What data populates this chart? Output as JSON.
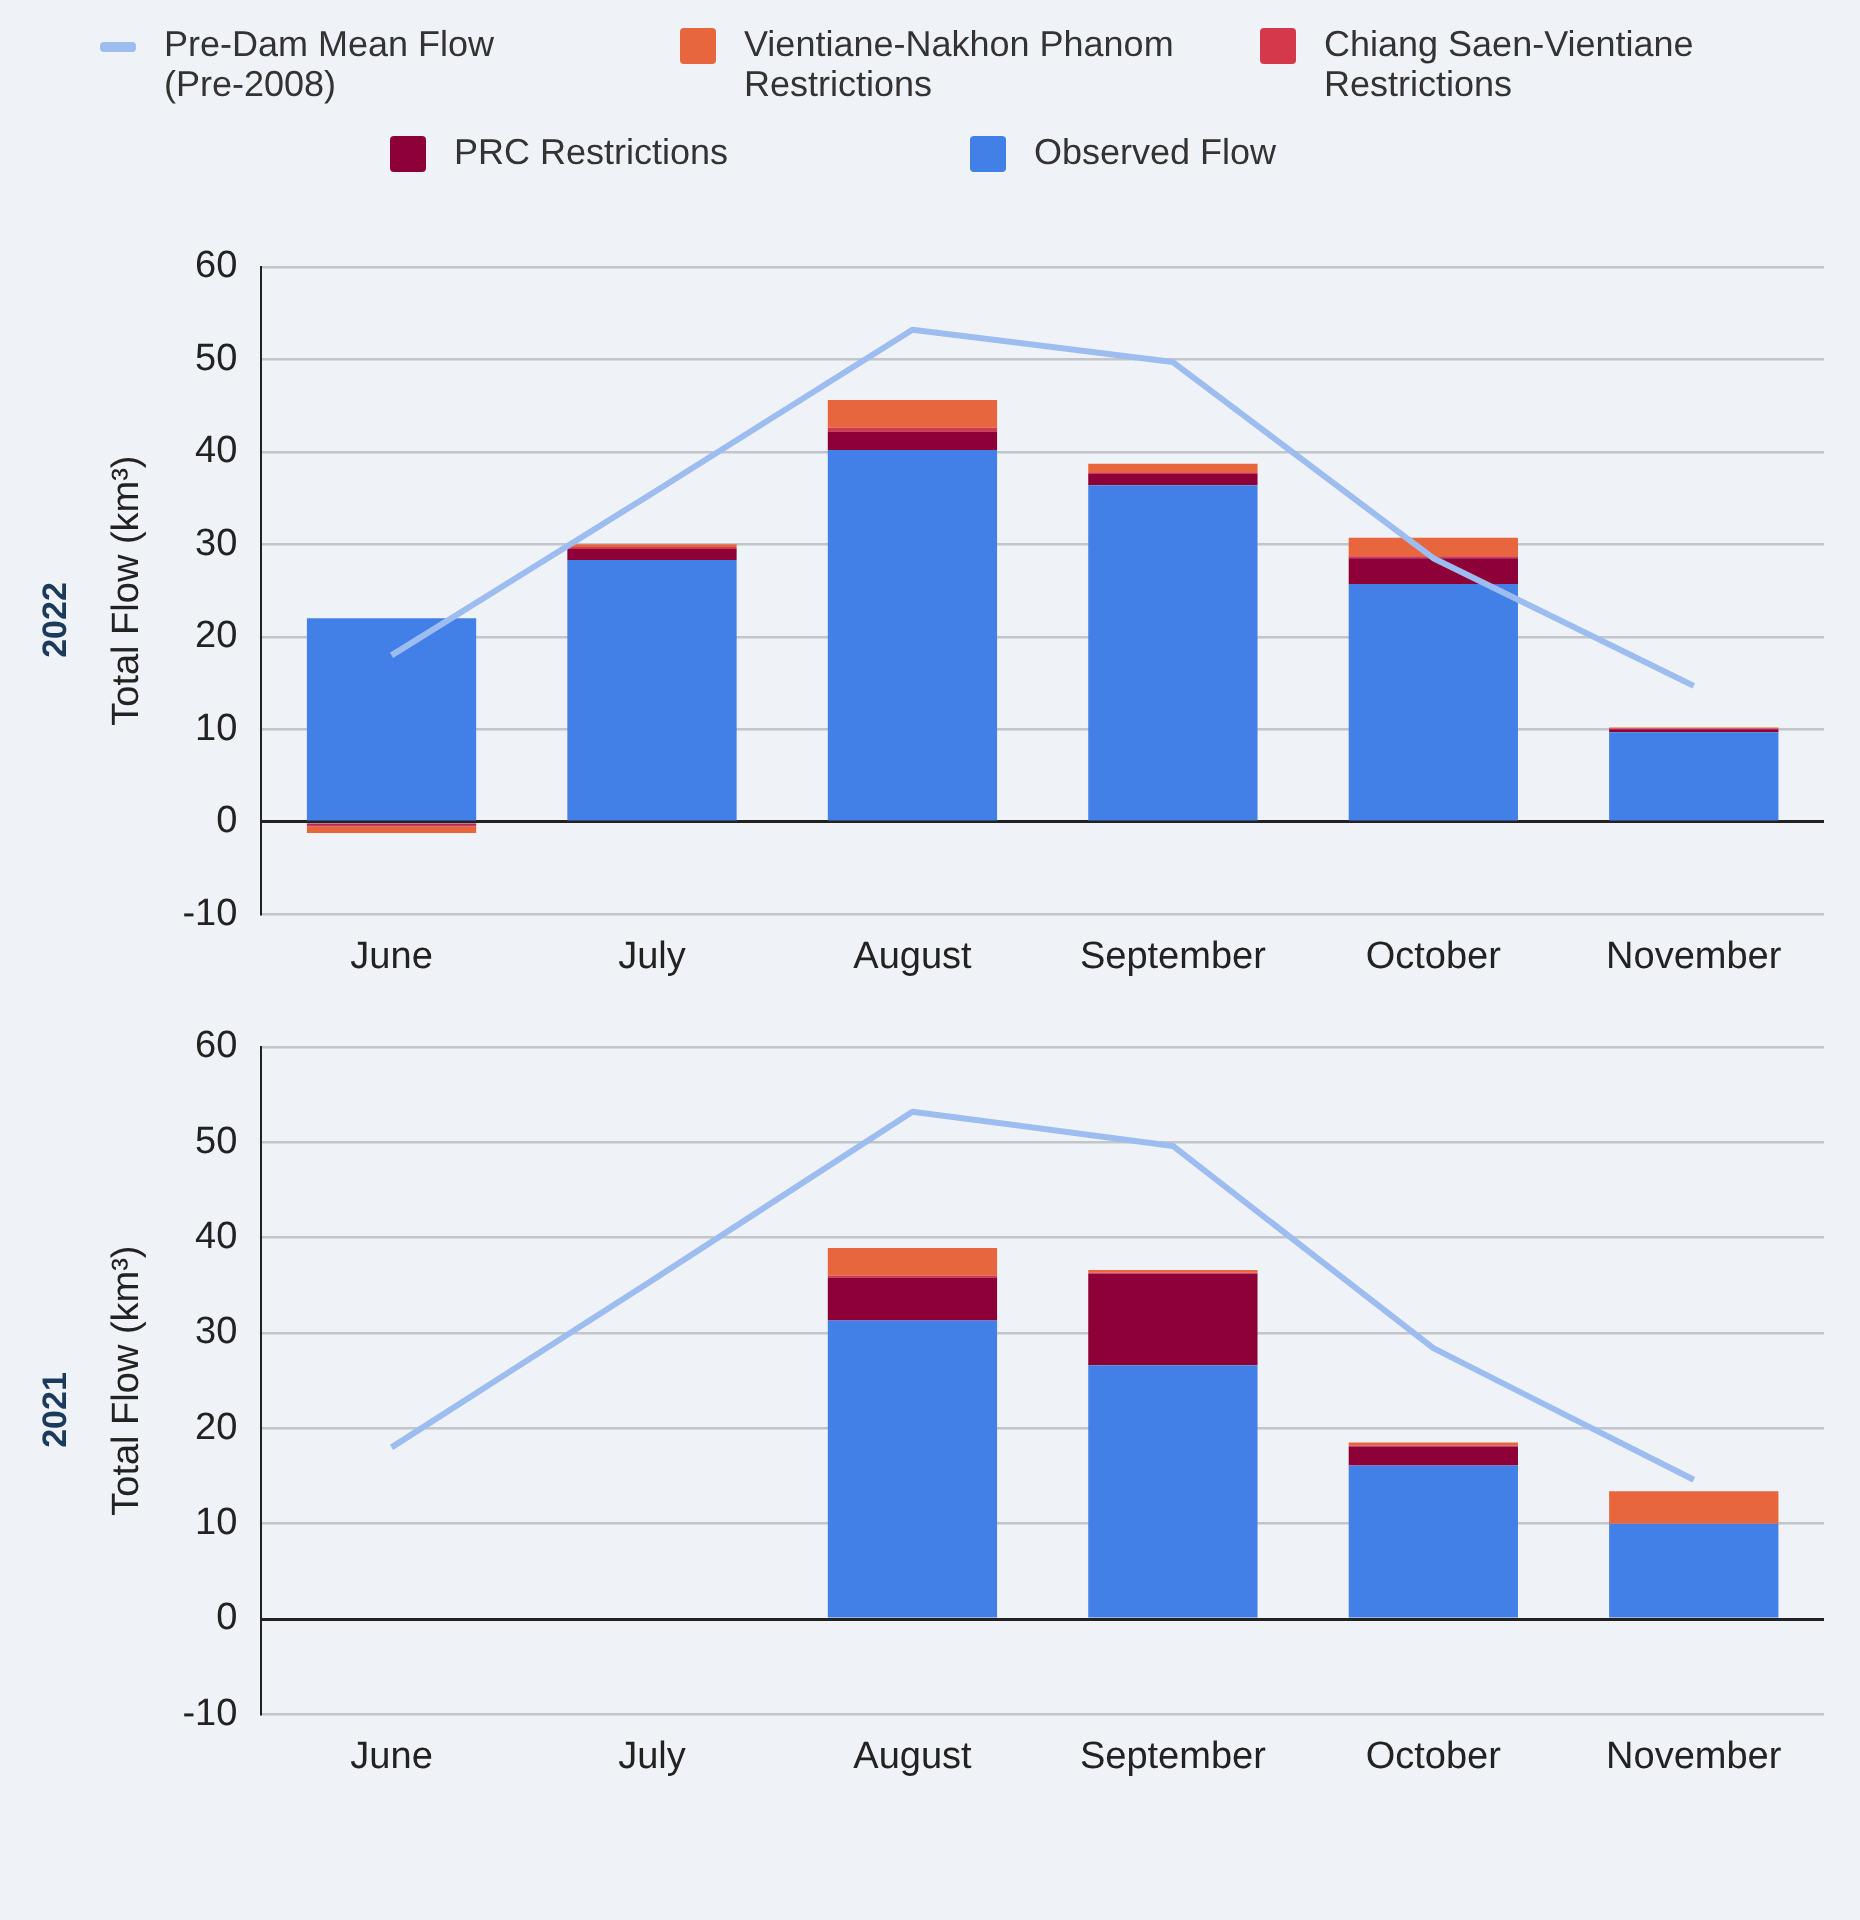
{
  "chart_data": [
    {
      "type": "bar",
      "title": "2022",
      "ylabel": "Total Flow (km³)",
      "categories": [
        "June",
        "July",
        "August",
        "September",
        "October",
        "November"
      ],
      "stacked": true,
      "ylim": [
        -10,
        60
      ],
      "yticks": [
        -10,
        0,
        10,
        20,
        30,
        40,
        50,
        60
      ],
      "grid": "y",
      "legend": "top",
      "marker": "none",
      "series": [
        {
          "name": "Observed Flow",
          "color": "#4280e8",
          "values": [
            22,
            28.3,
            40.2,
            36.4,
            25.7,
            9.7
          ]
        },
        {
          "name": "PRC Restrictions",
          "color": "#8e0038",
          "values": [
            -0.3,
            1.2,
            2,
            1.2,
            2.8,
            0.3
          ]
        },
        {
          "name": "Chiang Saen-Vientiane Restrictions",
          "color": "#d3394b",
          "values": [
            -0.2,
            0.2,
            0.4,
            0.2,
            0.2,
            0.1
          ]
        },
        {
          "name": "Vientiane-Nakhon Phanom Restrictions",
          "color": "#e8663d",
          "values": [
            -0.7,
            0.3,
            3,
            0.9,
            2,
            0.1
          ]
        },
        {
          "name": "Pre-Dam Mean Flow (Pre-2008)",
          "type": "line",
          "color": "#9dbcf0",
          "values": [
            18,
            35.5,
            53.2,
            49.7,
            28.5,
            14.7
          ]
        }
      ]
    },
    {
      "type": "bar",
      "title": "2021",
      "ylabel": "Total Flow (km³)",
      "categories": [
        "June",
        "July",
        "August",
        "September",
        "October",
        "November"
      ],
      "stacked": true,
      "ylim": [
        -10,
        60
      ],
      "yticks": [
        -10,
        0,
        10,
        20,
        30,
        40,
        50,
        60
      ],
      "grid": "y",
      "marker": "none",
      "series": [
        {
          "color": "#4280e8",
          "values": [
            null,
            null,
            31.3,
            26.6,
            16.1,
            10
          ]
        },
        {
          "color": "#8e0038",
          "values": [
            null,
            null,
            4.5,
            9.6,
            2,
            0
          ]
        },
        {
          "color": "#d3394b",
          "values": [
            null,
            null,
            0.2,
            0.1,
            0.1,
            0
          ]
        },
        {
          "color": "#e8663d",
          "values": [
            null,
            null,
            2.9,
            0.3,
            0.3,
            3.4
          ]
        },
        {
          "type": "line",
          "color": "#9dbcf0",
          "values": [
            18,
            35.5,
            53.2,
            49.6,
            28.4,
            14.6
          ]
        }
      ]
    }
  ]
}
